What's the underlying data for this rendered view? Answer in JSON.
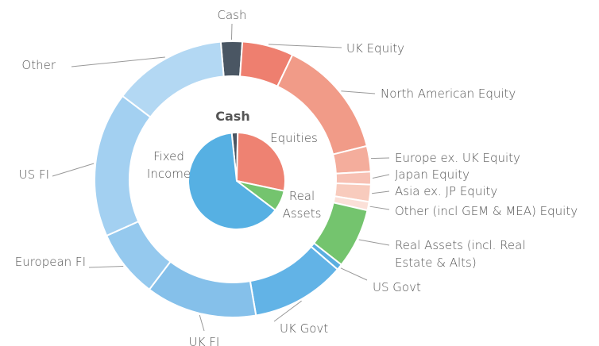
{
  "chart_data": {
    "type": "nested-donut",
    "inner": {
      "categories": [
        "Cash",
        "Equities",
        "Real Assets",
        "Fixed Income"
      ],
      "values": [
        2,
        28,
        7,
        63
      ],
      "colors": [
        "#4a5663",
        "#ee8272",
        "#74c46e",
        "#56b0e3"
      ]
    },
    "outer": {
      "categories": [
        "Cash",
        "UK Equity",
        "North American Equity",
        "Europe ex. UK Equity",
        "Japan Equity",
        "Asia ex. JP Equity",
        "Other (incl GEM & MEA) Equity",
        "Real Assets (incl. Real Estate & Alts)",
        "US Govt",
        "UK Govt",
        "UK FI",
        "European FI",
        "US FI",
        "Other"
      ],
      "values": [
        2.5,
        6,
        14,
        3,
        1.5,
        2,
        1,
        7,
        0.7,
        11,
        13,
        8,
        17,
        13.3
      ],
      "colors": [
        "#4a5663",
        "#ee7f6f",
        "#f19b88",
        "#f4ad9c",
        "#f7c1b4",
        "#f8cbbd",
        "#fbe0d8",
        "#74c46e",
        "#5aaee0",
        "#62b3e6",
        "#85c0ea",
        "#95c9ee",
        "#a3d0f1",
        "#b3d8f3"
      ]
    }
  }
}
